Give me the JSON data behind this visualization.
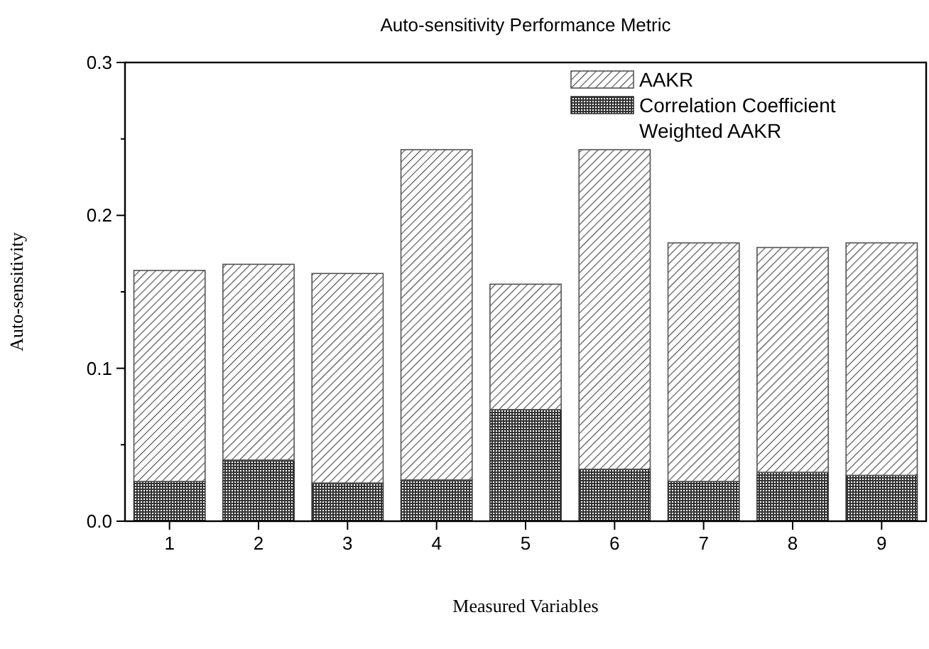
{
  "chart_data": {
    "type": "bar",
    "title": "Auto-sensitivity Performance Metric",
    "xlabel": "Measured Variables",
    "ylabel": "Auto-sensitivity",
    "categories": [
      "1",
      "2",
      "3",
      "4",
      "5",
      "6",
      "7",
      "8",
      "9"
    ],
    "stacked": true,
    "series": [
      {
        "name": "Correlation Coefficient",
        "color": "#333333",
        "values": [
          0.026,
          0.04,
          0.025,
          0.027,
          0.073,
          0.034,
          0.026,
          0.032,
          0.03
        ]
      },
      {
        "name": "AAKR",
        "color": "#555555",
        "values": [
          0.138,
          0.128,
          0.137,
          0.216,
          0.082,
          0.209,
          0.156,
          0.147,
          0.152
        ]
      },
      {
        "name": "Weighted AAKR",
        "values": [
          null,
          null,
          null,
          null,
          null,
          null,
          null,
          null,
          null
        ]
      }
    ],
    "ylim": [
      0,
      0.3
    ],
    "yticks": [
      {
        "value": 0,
        "label": "0.0"
      },
      {
        "value": 0.05,
        "label": null
      },
      0.1,
      {
        "value": 0.15,
        "label": null
      },
      0.2,
      {
        "value": 0.25,
        "label": null
      },
      0.3
    ],
    "legend": "top right"
  }
}
